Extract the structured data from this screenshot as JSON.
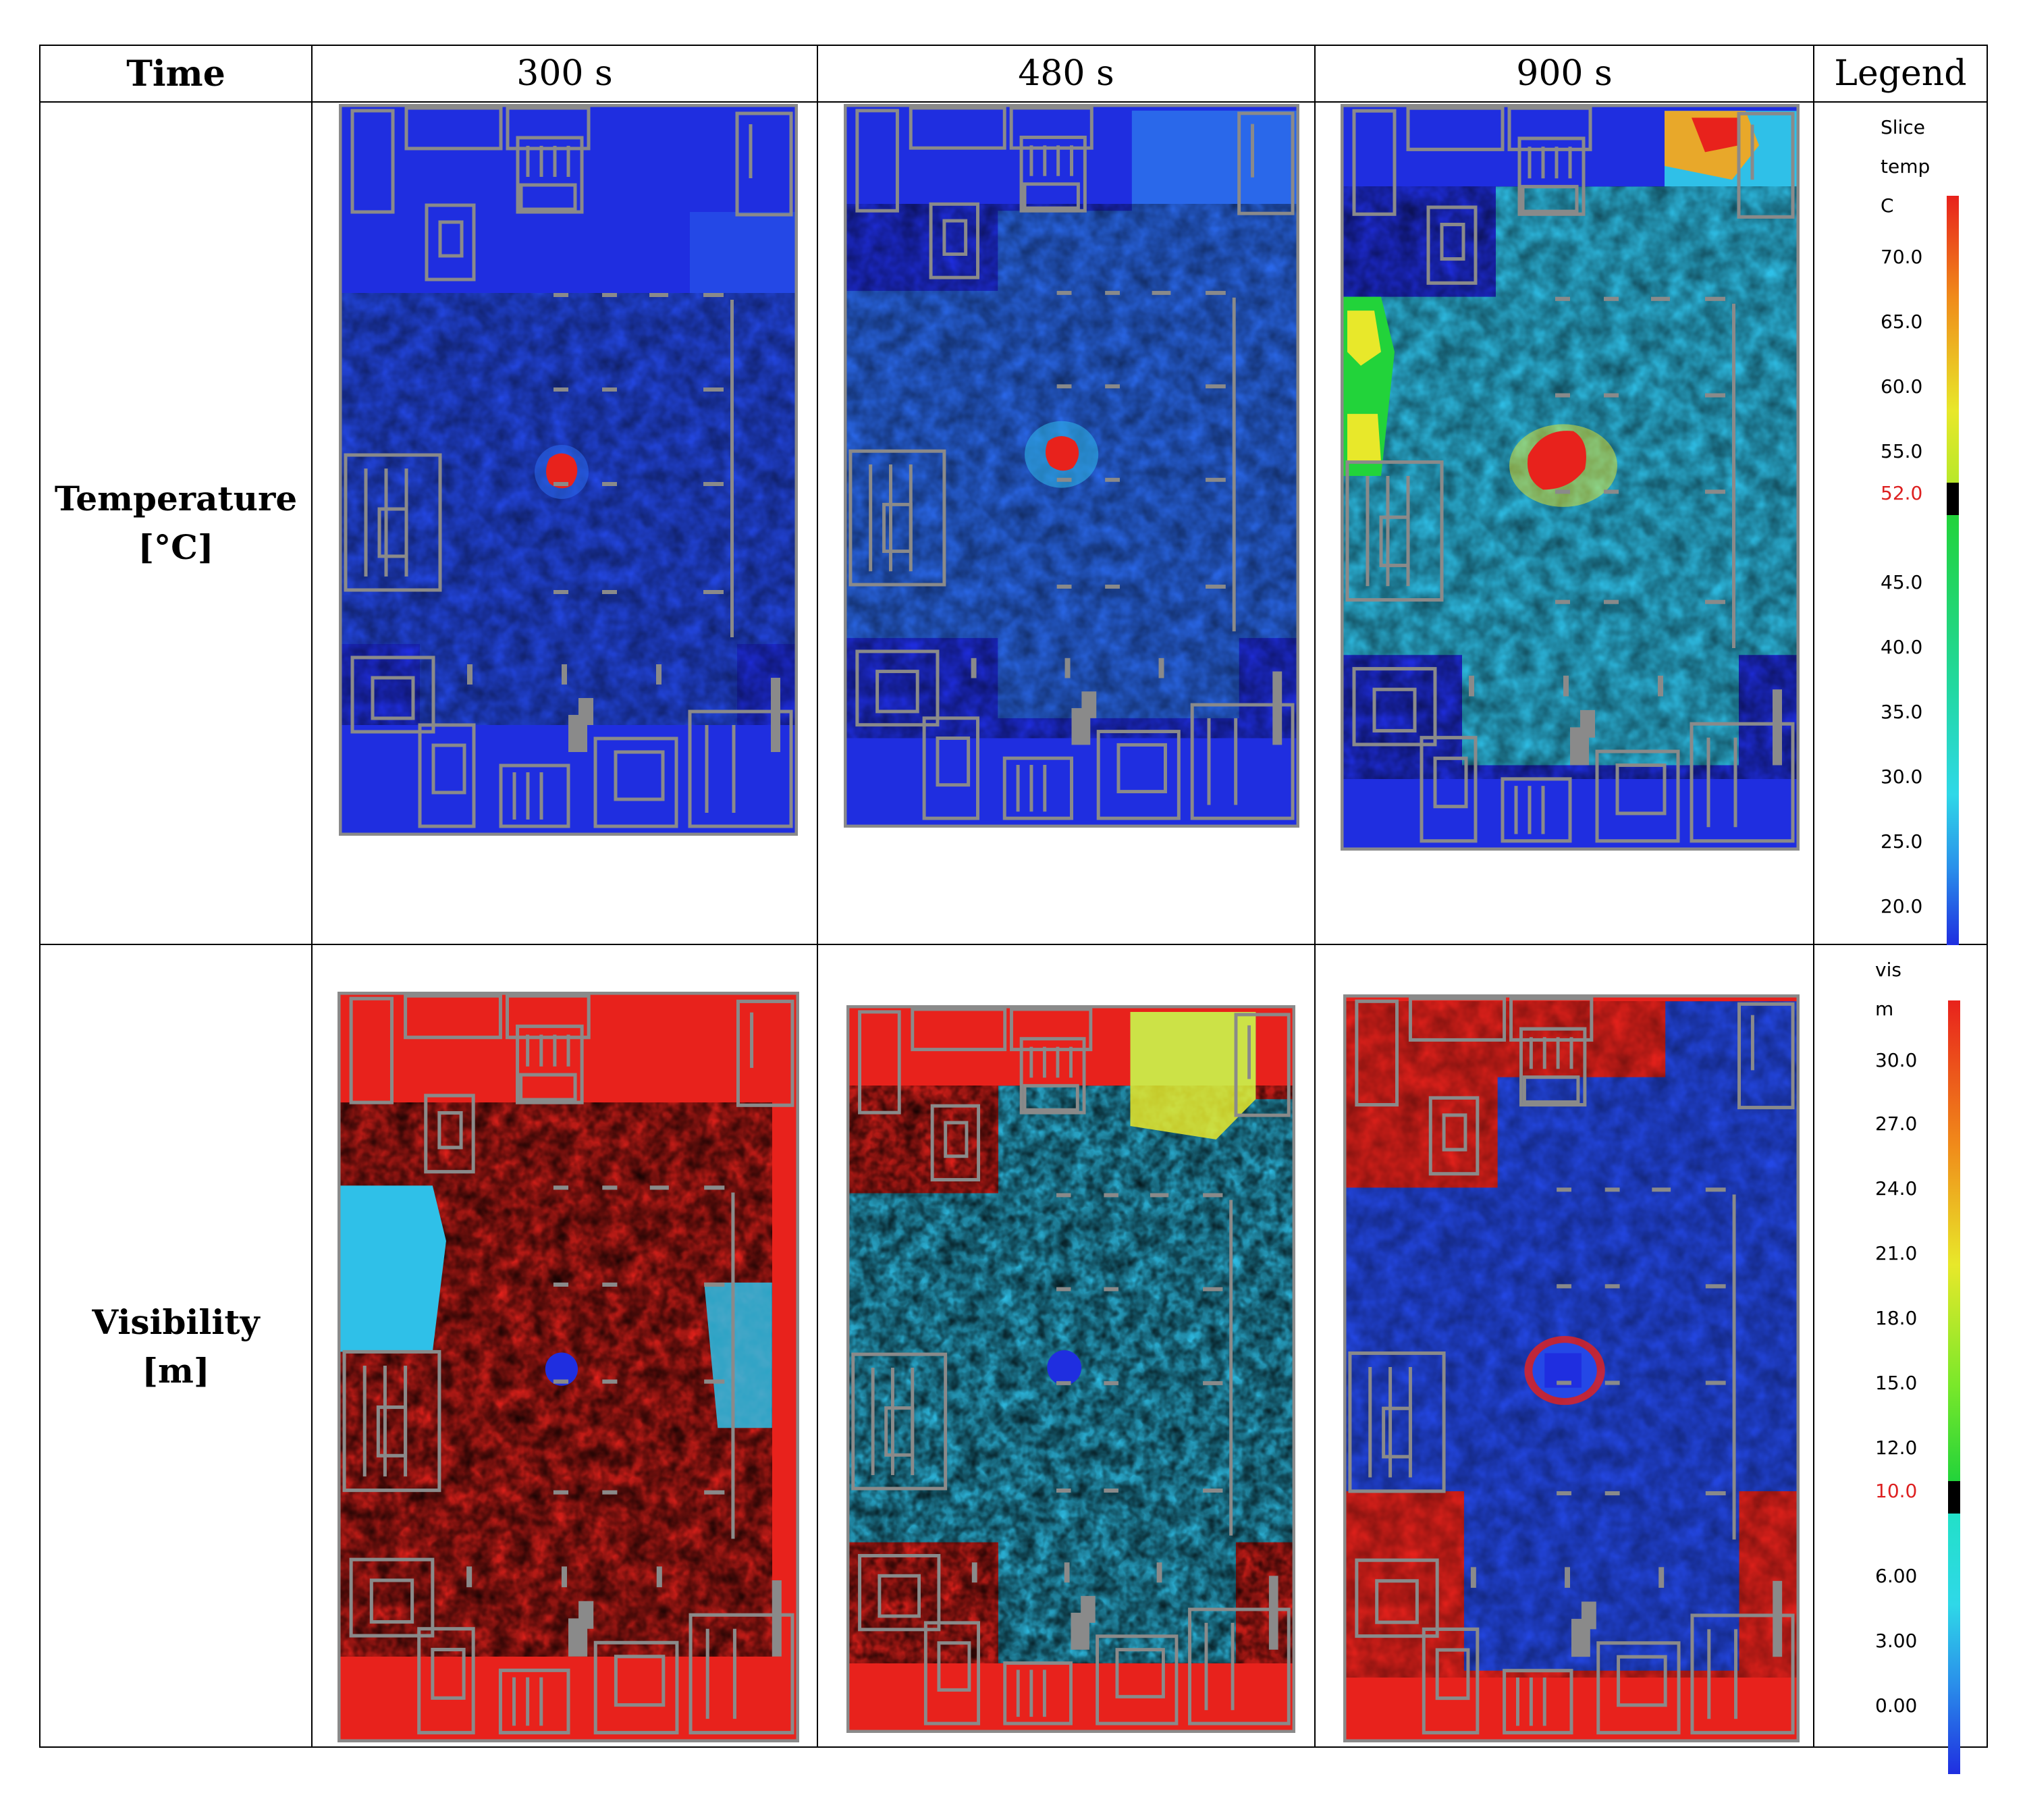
{
  "table": {
    "header": {
      "time": "Time",
      "col1": "300 s",
      "col2": "480 s",
      "col3": "900 s",
      "legend": "Legend"
    },
    "rows": {
      "temperature": {
        "line1": "Temperature",
        "line2": "[°C]"
      },
      "visibility": {
        "line1": "Visibility",
        "line2": "[m]"
      }
    }
  },
  "legend_temperature": {
    "title1": "Slice",
    "title2": "temp",
    "unit": "C",
    "ticks": [
      "70.0",
      "65.0",
      "60.0",
      "55.0",
      "52.0",
      "45.0",
      "40.0",
      "35.0",
      "30.0",
      "25.0",
      "20.0"
    ],
    "highlight": "52.0"
  },
  "legend_visibility": {
    "title1": "vis",
    "unit": "m",
    "ticks": [
      "30.0",
      "27.0",
      "24.0",
      "21.0",
      "18.0",
      "15.0",
      "12.0",
      "10.0",
      "6.00",
      "3.00",
      "0.00"
    ],
    "highlight": "10.0"
  },
  "colors": {
    "blue": "#1f2ee0",
    "cyan": "#2fc0e8",
    "green": "#22d33a",
    "yellow": "#e8e82a",
    "red": "#e8221c",
    "wall": "#8a8a8a"
  }
}
